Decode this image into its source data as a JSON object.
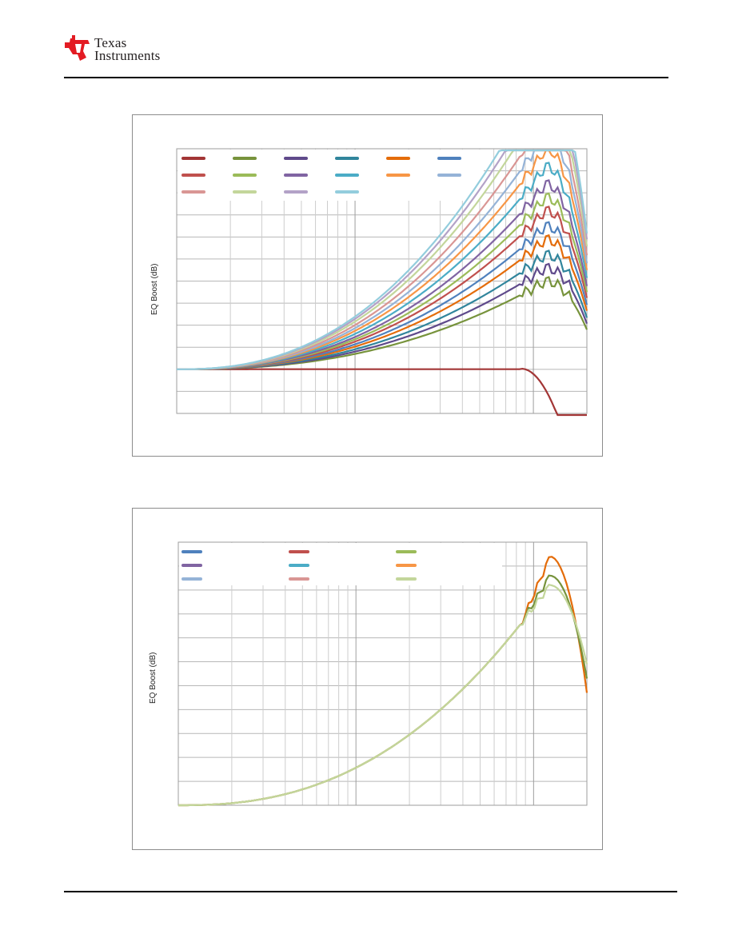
{
  "header": {
    "logo_line1": "Texas",
    "logo_line2": "Instruments",
    "logo_color": "#e31b23"
  },
  "chart_data": [
    {
      "type": "line",
      "ylabel": "EQ Boost (dB)",
      "xscale": "log",
      "grid": true,
      "legend": "top-left inside plot, 6 columns, 3 rows, no text visible",
      "series": [
        {
          "color": "#a23535",
          "peak": -0.3
        },
        {
          "color": "#77933c",
          "peak": 4.0
        },
        {
          "color": "#5f4a8b",
          "peak": 4.6
        },
        {
          "color": "#31859c",
          "peak": 5.2
        },
        {
          "color": "#e46c0a",
          "peak": 5.9
        },
        {
          "color": "#4f81bd",
          "peak": 6.5
        },
        {
          "color": "#c0504d",
          "peak": 7.2
        },
        {
          "color": "#9bbb59",
          "peak": 7.8
        },
        {
          "color": "#8064a2",
          "peak": 8.4
        },
        {
          "color": "#4bacc6",
          "peak": 9.2
        },
        {
          "color": "#f79646",
          "peak": 10.0
        },
        {
          "color": "#95b3d7",
          "peak": 10.7
        },
        {
          "color": "#d99694",
          "peak": 11.5
        },
        {
          "color": "#c3d69b",
          "peak": 12.4
        },
        {
          "color": "#b3a2c7",
          "peak": 13.1
        },
        {
          "color": "#93cddd",
          "peak": 13.7
        }
      ]
    },
    {
      "type": "line",
      "ylabel": "EQ Boost (dB)",
      "xscale": "log",
      "grid": true,
      "legend": "top-left inside plot, 3 columns, 3 rows, no text visible",
      "legend_colors": [
        "#4f81bd",
        "#c0504d",
        "#9bbb59",
        "#8064a2",
        "#4bacc6",
        "#f79646",
        "#95b3d7",
        "#d99694",
        "#c3d69b"
      ],
      "series": [
        {
          "color": "#e46c0a",
          "peak": 10.4
        },
        {
          "color": "#77933c",
          "peak": 9.6
        },
        {
          "color": "#c3d69b",
          "peak": 9.2
        }
      ]
    }
  ]
}
